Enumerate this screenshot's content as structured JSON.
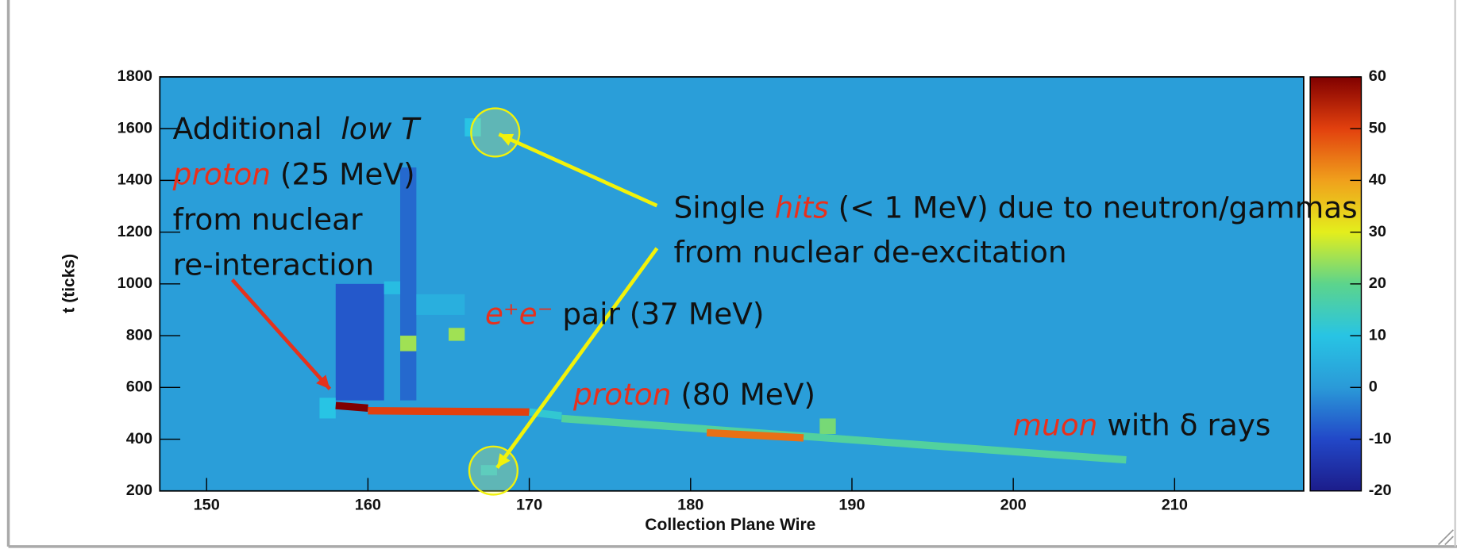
{
  "chart_data": {
    "type": "heatmap",
    "xlabel": "Collection Plane Wire",
    "ylabel": "t (ticks)",
    "xlim": [
      147.1,
      218
    ],
    "ylim": [
      200,
      1800
    ],
    "xticks": [
      150,
      160,
      170,
      180,
      190,
      200,
      210
    ],
    "yticks": [
      200,
      400,
      600,
      800,
      1000,
      1200,
      1400,
      1600,
      1800
    ],
    "zlim": [
      -20,
      60
    ],
    "zticks": [
      -20,
      -10,
      0,
      10,
      20,
      30,
      40,
      50,
      60
    ],
    "colormap": [
      "#1c1c8a",
      "#2248c8",
      "#2a9ad8",
      "#28c4e4",
      "#5cd48c",
      "#e4ee1c",
      "#f0a01c",
      "#e2400e",
      "#800000"
    ],
    "background_value": 1,
    "regions": [
      {
        "x": [
          158,
          161
        ],
        "t": [
          550,
          1000
        ],
        "value": -8
      },
      {
        "x": [
          162,
          163
        ],
        "t": [
          550,
          1450
        ],
        "value": -6
      },
      {
        "x": [
          161,
          162
        ],
        "t": [
          960,
          1010
        ],
        "value": 8
      },
      {
        "x": [
          163,
          166
        ],
        "t": [
          880,
          960
        ],
        "value": 5
      },
      {
        "x": [
          162,
          163
        ],
        "t": [
          740,
          800
        ],
        "value": 25
      },
      {
        "x": [
          165,
          166
        ],
        "t": [
          780,
          830
        ],
        "value": 25
      },
      {
        "x": [
          166,
          167
        ],
        "t": [
          1570,
          1640
        ],
        "value": 10
      },
      {
        "x": [
          167,
          168
        ],
        "t": [
          260,
          300
        ],
        "value": 8
      },
      {
        "x": [
          188,
          189
        ],
        "t": [
          420,
          480
        ],
        "value": 22
      },
      {
        "x": [
          157,
          158
        ],
        "t": [
          480,
          560
        ],
        "value": 10
      }
    ],
    "tracks": [
      {
        "x": [
          158,
          160
        ],
        "t": [
          530,
          520
        ],
        "value": 60
      },
      {
        "x": [
          160,
          170
        ],
        "t": [
          510,
          505
        ],
        "value": 50
      },
      {
        "x": [
          170,
          172
        ],
        "t": [
          505,
          490
        ],
        "value": 12
      },
      {
        "x": [
          172,
          207
        ],
        "t": [
          480,
          320
        ],
        "value": 18
      },
      {
        "x": [
          181,
          187
        ],
        "t": [
          425,
          405
        ],
        "value": 45
      }
    ],
    "annotations": [
      {
        "lines": [
          [
            {
              "text": "Additional  "
            },
            {
              "text": "low T",
              "italic": true
            }
          ],
          [
            {
              "text": "proton",
              "italic": true,
              "color": "#e8301c"
            },
            {
              "text": " (25 MeV)"
            }
          ],
          [
            {
              "text": "from nuclear"
            }
          ],
          [
            {
              "text": "re-interaction"
            }
          ]
        ]
      },
      {
        "lines": [
          [
            {
              "text": "Single "
            },
            {
              "text": "hits",
              "italic": true,
              "color": "#e8301c"
            },
            {
              "text": " (< 1 MeV) due to neutron/gammas"
            }
          ],
          [
            {
              "text": "from nuclear de-excitation"
            }
          ]
        ]
      },
      {
        "lines": [
          [
            {
              "text": "e⁺e⁻",
              "italic": true,
              "color": "#e8301c"
            },
            {
              "text": " pair (37 MeV)"
            }
          ]
        ]
      },
      {
        "lines": [
          [
            {
              "text": "proton",
              "italic": true,
              "color": "#e8301c"
            },
            {
              "text": " (80 MeV)"
            }
          ]
        ]
      },
      {
        "lines": [
          [
            {
              "text": "muon",
              "italic": true,
              "color": "#e8301c"
            },
            {
              "text": " with δ rays"
            }
          ]
        ]
      }
    ]
  }
}
